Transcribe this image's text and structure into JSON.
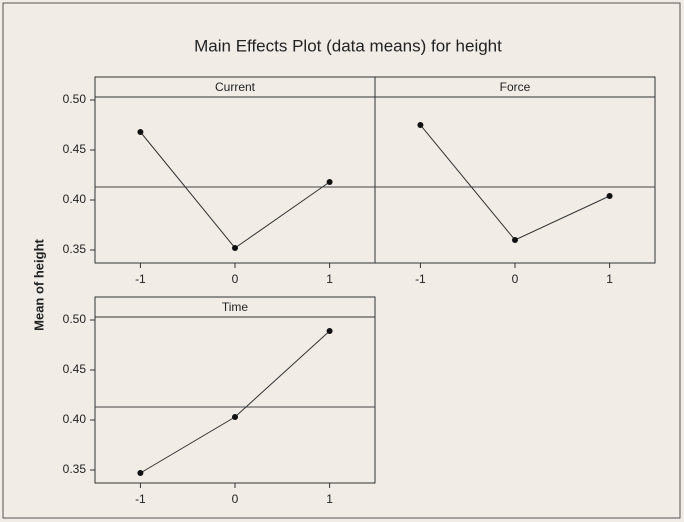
{
  "chart_data": {
    "type": "line",
    "title": "Main Effects Plot (data means) for height",
    "y_label": "Mean of height",
    "ylim": [
      0.337,
      0.503
    ],
    "yticks": [
      0.35,
      {
        "value": 0.4,
        "label": "0.40"
      },
      0.45,
      {
        "value": 0.5,
        "label": "0.50"
      }
    ],
    "xlim": [
      -1.48,
      1.48
    ],
    "xticks": [
      -1,
      0,
      1
    ],
    "reference": 0.413,
    "color": "#333333",
    "panels": [
      {
        "name": "Current",
        "x": [
          -1,
          0,
          1
        ],
        "values": [
          0.468,
          0.352,
          0.418
        ]
      },
      {
        "name": "Force",
        "x": [
          -1,
          0,
          1
        ],
        "values": [
          0.475,
          0.36,
          0.404
        ]
      },
      {
        "name": "Time",
        "x": [
          -1,
          0,
          1
        ],
        "values": [
          0.347,
          0.403,
          0.489
        ]
      }
    ]
  }
}
